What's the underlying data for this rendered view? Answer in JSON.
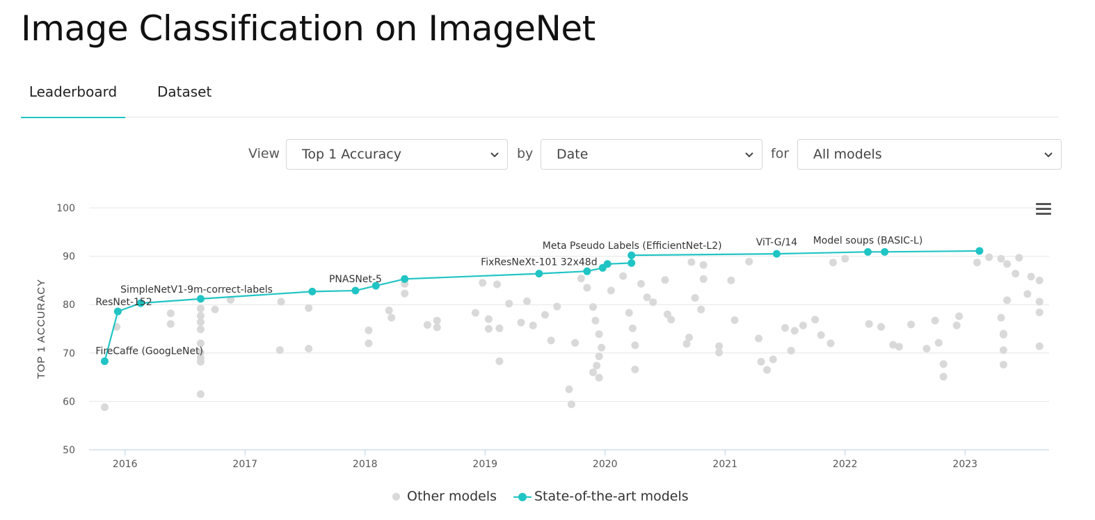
{
  "page": {
    "title": "Image Classification on ImageNet"
  },
  "tabs": [
    {
      "label": "Leaderboard",
      "active": true
    },
    {
      "label": "Dataset",
      "active": false
    }
  ],
  "controls": {
    "view_label": "View",
    "view_value": "Top 1 Accuracy",
    "by_label": "by",
    "by_value": "Date",
    "for_label": "for",
    "for_value": "All models"
  },
  "menu_icon": "hamburger-menu-icon",
  "colors": {
    "sota": "#21c4c4",
    "other": "#d9d9d9",
    "grid": "#e6e6e6",
    "axis": "#b9cfe0"
  },
  "chart_data": {
    "type": "scatter",
    "title": "",
    "xlabel": "",
    "ylabel": "TOP 1 ACCURACY",
    "xlim": [
      2015.7,
      2023.7
    ],
    "ylim": [
      50,
      100
    ],
    "x_ticks": [
      2016,
      2017,
      2018,
      2019,
      2020,
      2021,
      2022,
      2023
    ],
    "x_tick_labels": [
      "2016",
      "2017",
      "2018",
      "2019",
      "2020",
      "2021",
      "2022",
      "2023"
    ],
    "y_ticks": [
      50,
      60,
      70,
      80,
      90,
      100
    ],
    "y_tick_labels": [
      "50",
      "60",
      "70",
      "80",
      "90",
      "100"
    ],
    "grid": true,
    "legend_position": "bottom",
    "series": [
      {
        "name": "Other models",
        "points": [
          [
            2015.83,
            58.8
          ],
          [
            2015.93,
            75.4
          ],
          [
            2016.38,
            78.2
          ],
          [
            2016.38,
            76.0
          ],
          [
            2016.63,
            79.2
          ],
          [
            2016.63,
            77.7
          ],
          [
            2016.63,
            76.4
          ],
          [
            2016.63,
            74.9
          ],
          [
            2016.63,
            72.0
          ],
          [
            2016.63,
            70.1
          ],
          [
            2016.63,
            69.0
          ],
          [
            2016.63,
            68.2
          ],
          [
            2016.63,
            61.5
          ],
          [
            2016.75,
            79.0
          ],
          [
            2016.88,
            81.0
          ],
          [
            2017.29,
            70.6
          ],
          [
            2017.3,
            80.6
          ],
          [
            2017.53,
            79.3
          ],
          [
            2017.53,
            70.9
          ],
          [
            2018.03,
            72.0
          ],
          [
            2018.03,
            74.7
          ],
          [
            2018.2,
            78.8
          ],
          [
            2018.22,
            77.3
          ],
          [
            2018.33,
            82.3
          ],
          [
            2018.33,
            84.3
          ],
          [
            2018.52,
            75.8
          ],
          [
            2018.6,
            75.3
          ],
          [
            2018.6,
            76.7
          ],
          [
            2018.92,
            78.3
          ],
          [
            2018.98,
            84.5
          ],
          [
            2019.03,
            77.0
          ],
          [
            2019.03,
            75.0
          ],
          [
            2019.12,
            68.3
          ],
          [
            2019.12,
            75.1
          ],
          [
            2019.1,
            84.2
          ],
          [
            2019.2,
            80.2
          ],
          [
            2019.3,
            76.3
          ],
          [
            2019.35,
            80.7
          ],
          [
            2019.4,
            75.7
          ],
          [
            2019.5,
            77.9
          ],
          [
            2019.55,
            72.6
          ],
          [
            2019.6,
            79.6
          ],
          [
            2019.7,
            62.5
          ],
          [
            2019.72,
            59.4
          ],
          [
            2019.75,
            72.1
          ],
          [
            2019.8,
            85.4
          ],
          [
            2019.85,
            83.5
          ],
          [
            2019.9,
            79.5
          ],
          [
            2019.92,
            76.7
          ],
          [
            2019.95,
            73.9
          ],
          [
            2019.97,
            71.1
          ],
          [
            2019.95,
            69.3
          ],
          [
            2019.93,
            67.4
          ],
          [
            2019.95,
            64.9
          ],
          [
            2019.9,
            66.0
          ],
          [
            2020.05,
            82.9
          ],
          [
            2020.15,
            85.9
          ],
          [
            2020.2,
            78.3
          ],
          [
            2020.23,
            75.1
          ],
          [
            2020.25,
            71.6
          ],
          [
            2020.25,
            66.6
          ],
          [
            2020.3,
            84.3
          ],
          [
            2020.35,
            81.5
          ],
          [
            2020.4,
            80.5
          ],
          [
            2020.5,
            85.1
          ],
          [
            2020.52,
            78.0
          ],
          [
            2020.55,
            76.9
          ],
          [
            2020.72,
            88.8
          ],
          [
            2020.82,
            88.2
          ],
          [
            2020.82,
            85.3
          ],
          [
            2020.7,
            73.2
          ],
          [
            2020.68,
            71.9
          ],
          [
            2020.75,
            81.4
          ],
          [
            2020.8,
            79.0
          ],
          [
            2020.95,
            70.1
          ],
          [
            2020.95,
            71.4
          ],
          [
            2021.05,
            85.0
          ],
          [
            2021.08,
            76.8
          ],
          [
            2021.2,
            88.9
          ],
          [
            2021.28,
            73.0
          ],
          [
            2021.3,
            68.2
          ],
          [
            2021.35,
            66.5
          ],
          [
            2021.4,
            68.7
          ],
          [
            2021.55,
            70.5
          ],
          [
            2021.5,
            75.2
          ],
          [
            2021.58,
            74.6
          ],
          [
            2021.65,
            75.7
          ],
          [
            2021.75,
            76.9
          ],
          [
            2021.8,
            73.7
          ],
          [
            2021.88,
            72.0
          ],
          [
            2021.9,
            88.7
          ],
          [
            2022.0,
            89.5
          ],
          [
            2022.2,
            76.0
          ],
          [
            2022.3,
            75.4
          ],
          [
            2022.4,
            71.7
          ],
          [
            2022.45,
            71.3
          ],
          [
            2022.55,
            75.9
          ],
          [
            2022.68,
            70.9
          ],
          [
            2022.75,
            76.7
          ],
          [
            2022.78,
            72.1
          ],
          [
            2022.82,
            67.7
          ],
          [
            2022.82,
            65.1
          ],
          [
            2022.93,
            75.7
          ],
          [
            2022.95,
            77.6
          ],
          [
            2023.1,
            88.7
          ],
          [
            2023.2,
            89.8
          ],
          [
            2023.3,
            89.5
          ],
          [
            2023.35,
            88.4
          ],
          [
            2023.3,
            77.3
          ],
          [
            2023.32,
            74.0
          ],
          [
            2023.32,
            73.8
          ],
          [
            2023.32,
            70.6
          ],
          [
            2023.32,
            67.6
          ],
          [
            2023.35,
            80.9
          ],
          [
            2023.42,
            86.4
          ],
          [
            2023.45,
            89.7
          ],
          [
            2023.52,
            82.2
          ],
          [
            2023.55,
            85.8
          ],
          [
            2023.62,
            71.4
          ],
          [
            2023.62,
            85.0
          ],
          [
            2023.62,
            80.6
          ],
          [
            2023.62,
            78.4
          ]
        ]
      },
      {
        "name": "State-of-the-art models",
        "points": [
          [
            2015.83,
            68.3
          ],
          [
            2015.94,
            78.6
          ],
          [
            2016.13,
            80.3
          ],
          [
            2016.63,
            81.2
          ],
          [
            2017.56,
            82.7
          ],
          [
            2017.92,
            82.9
          ],
          [
            2018.09,
            83.9
          ],
          [
            2018.33,
            85.3
          ],
          [
            2019.45,
            86.4
          ],
          [
            2019.85,
            86.9
          ],
          [
            2019.98,
            87.6
          ],
          [
            2020.02,
            88.4
          ],
          [
            2020.22,
            88.6
          ],
          [
            2020.22,
            90.2
          ],
          [
            2021.43,
            90.5
          ],
          [
            2022.19,
            90.9
          ],
          [
            2022.33,
            90.9
          ],
          [
            2023.12,
            91.1
          ]
        ]
      }
    ],
    "point_labels": [
      {
        "text": "FireCaffe (GoogLeNet)",
        "x": 2015.83,
        "y": 68.3
      },
      {
        "text": "ResNet-152",
        "x": 2015.94,
        "y": 78.6
      },
      {
        "text": "SimpleNetV1-9m-correct-labels",
        "x": 2016.13,
        "y": 80.3
      },
      {
        "text": "PNASNet-5",
        "x": 2017.92,
        "y": 82.9
      },
      {
        "text": "FixResNeXt-101 32x48d",
        "x": 2019.45,
        "y": 86.4
      },
      {
        "text": "Meta Pseudo Labels (EfficientNet-L2)",
        "x": 2020.22,
        "y": 90.2
      },
      {
        "text": "ViT-G/14",
        "x": 2021.43,
        "y": 90.5
      },
      {
        "text": "Model soups (BASIC-L)",
        "x": 2022.19,
        "y": 90.9
      }
    ]
  }
}
